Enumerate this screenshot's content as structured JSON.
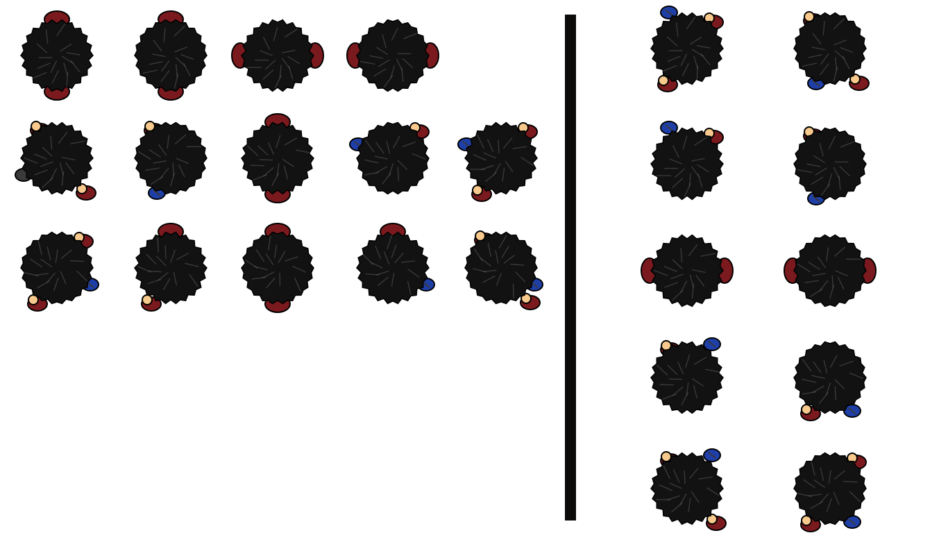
{
  "sheet": {
    "background_color": "#ffffff",
    "divider_color": "#0d0a0a",
    "colors": {
      "hair": "#121212",
      "hair_highlight": "#5a5a5a",
      "shirt": "#7b1a1e",
      "skin": "#f7c98c",
      "sleeve_blue": "#1f3fa8",
      "shoe": "#3a3a3a",
      "outline": "#000000"
    },
    "left_panel": {
      "rows": [
        {
          "frames": [
            {
              "pose": "walk-down",
              "accessories": [
                "shirt-top",
                "shirt-bottom"
              ]
            },
            {
              "pose": "walk-down",
              "accessories": [
                "shirt-top",
                "shirt-bottom"
              ]
            },
            {
              "pose": "arms-side",
              "accessories": [
                "shirt-left",
                "shirt-right"
              ]
            },
            {
              "pose": "arms-side",
              "accessories": [
                "shirt-left",
                "shirt-right"
              ]
            }
          ]
        },
        {
          "frames": [
            {
              "pose": "turn-left",
              "accessories": [
                "hand-top-left",
                "shoe-left",
                "hand-bottom-right"
              ]
            },
            {
              "pose": "turn-left",
              "accessories": [
                "hand-top-left",
                "sleeve-bottom-left"
              ]
            },
            {
              "pose": "walk-down",
              "accessories": [
                "shirt-top",
                "shirt-bottom"
              ]
            },
            {
              "pose": "turn-right",
              "accessories": [
                "hand-top-right",
                "sleeve-left"
              ]
            },
            {
              "pose": "turn-right",
              "accessories": [
                "hand-top-right",
                "sleeve-left",
                "hand-bottom-left"
              ]
            }
          ]
        },
        {
          "frames": [
            {
              "pose": "turn-left",
              "accessories": [
                "hand-top-right",
                "sleeve-right",
                "hand-bottom-left"
              ]
            },
            {
              "pose": "turn-left",
              "accessories": [
                "shirt-top",
                "hand-bottom-left"
              ]
            },
            {
              "pose": "walk-down",
              "accessories": [
                "shirt-top",
                "shirt-bottom"
              ]
            },
            {
              "pose": "turn-right",
              "accessories": [
                "shirt-top",
                "sleeve-right"
              ]
            },
            {
              "pose": "turn-right",
              "accessories": [
                "hand-top-left",
                "sleeve-right",
                "hand-bottom-right"
              ]
            }
          ]
        }
      ]
    },
    "right_panel": {
      "rows": [
        {
          "frames": [
            {
              "pose": "diagonal-left",
              "accessories": [
                "sleeve-top-left",
                "hand-bottom-left",
                "hand-top-right"
              ]
            },
            {
              "pose": "diagonal-right",
              "accessories": [
                "hand-top-left",
                "sleeve-bottom-left",
                "hand-bottom-right"
              ]
            }
          ]
        },
        {
          "frames": [
            {
              "pose": "diagonal-left",
              "accessories": [
                "sleeve-top-left",
                "hand-top-right"
              ]
            },
            {
              "pose": "diagonal-right",
              "accessories": [
                "hand-top-left",
                "sleeve-bottom-left"
              ]
            }
          ]
        },
        {
          "frames": [
            {
              "pose": "arms-side",
              "accessories": [
                "shirt-left",
                "shirt-right"
              ]
            },
            {
              "pose": "arms-side",
              "accessories": [
                "shirt-left",
                "shirt-right"
              ]
            }
          ]
        },
        {
          "frames": [
            {
              "pose": "diagonal-left",
              "accessories": [
                "hand-top-left",
                "sleeve-top-right"
              ]
            },
            {
              "pose": "diagonal-right",
              "accessories": [
                "hand-bottom-left",
                "sleeve-bottom-right"
              ]
            }
          ]
        },
        {
          "frames": [
            {
              "pose": "diagonal-left",
              "accessories": [
                "hand-top-left",
                "sleeve-top-right",
                "hand-bottom-right"
              ]
            },
            {
              "pose": "diagonal-right",
              "accessories": [
                "hand-top-right",
                "sleeve-bottom-right",
                "hand-bottom-left"
              ]
            }
          ]
        }
      ]
    }
  }
}
